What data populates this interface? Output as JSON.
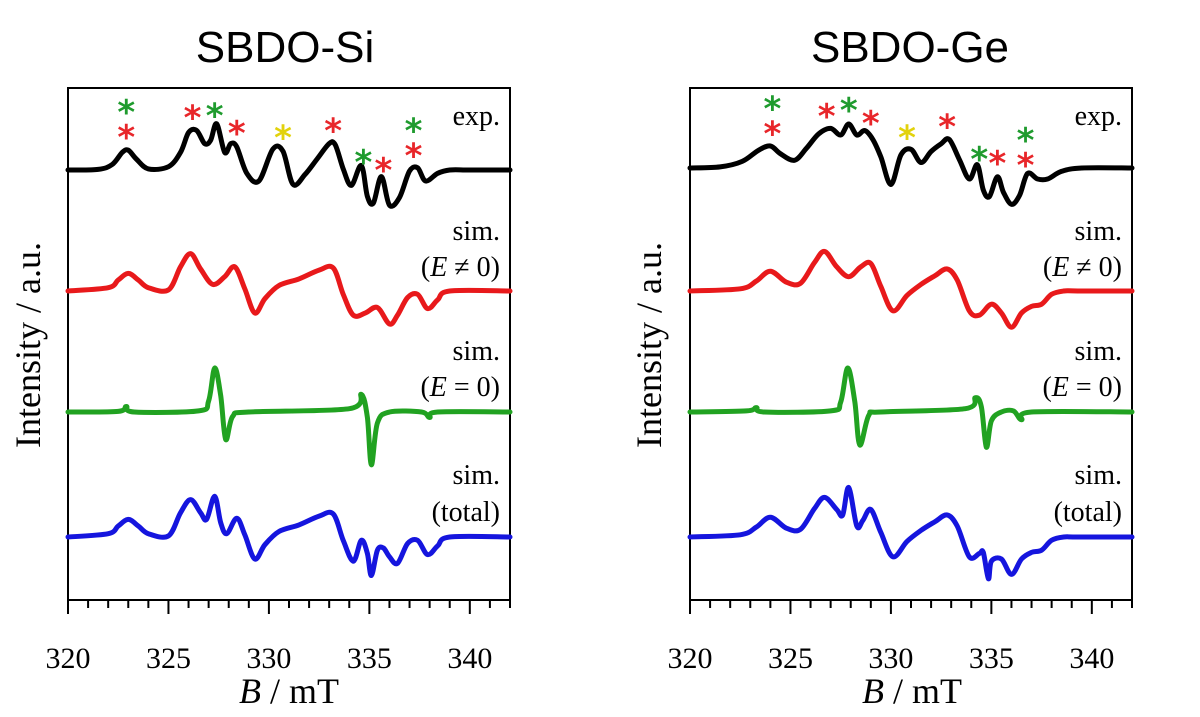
{
  "colors": {
    "black": "#000000",
    "red": "#e8191b",
    "green": "#21a221",
    "blue": "#1515de",
    "yellow": "#ddd012",
    "star_red": "#e8262a",
    "star_green": "#1f9b2e",
    "star_yellow": "#e2d20c"
  },
  "chart_data": [
    {
      "type": "line",
      "title": "SBDO-Si",
      "xlabel_italic": "B",
      "xlabel_rest": " / mT",
      "ylabel": "Intensity / a.u.",
      "xlim": [
        320,
        342
      ],
      "xticks": [
        320,
        325,
        330,
        335,
        340
      ],
      "xtick_labels": [
        "320",
        "325",
        "330",
        "335",
        "340"
      ],
      "y_axis_ticks": false,
      "trace_labels": {
        "exp": "exp.",
        "sim": "sim.",
        "e_ne0": "(E ≠ 0)",
        "e_eq0": "(E = 0)",
        "total": "(total)"
      },
      "series": [
        {
          "name": "exp.",
          "color": "black",
          "x": [
            320,
            321.5,
            322.2,
            322.7,
            323.0,
            323.4,
            324.0,
            325.0,
            325.6,
            326.0,
            326.4,
            326.8,
            327.1,
            327.4,
            327.8,
            328.1,
            328.4,
            328.9,
            329.5,
            330.2,
            330.7,
            331.2,
            331.8,
            332.4,
            333.0,
            333.3,
            333.7,
            334.1,
            334.6,
            334.9,
            335.2,
            335.6,
            336.0,
            336.5,
            337.0,
            337.4,
            337.8,
            338.4,
            339.0,
            340.0,
            342.0
          ],
          "y": [
            0,
            0.05,
            0.5,
            1.6,
            1.8,
            1.0,
            0.1,
            0.3,
            1.6,
            3.4,
            3.6,
            2.4,
            2.7,
            4.2,
            1.6,
            2.4,
            2.1,
            -0.3,
            -1.0,
            1.9,
            1.7,
            -1.3,
            -0.4,
            1.0,
            2.4,
            2.3,
            0.1,
            -1.4,
            0.4,
            -2.4,
            -3.0,
            -0.6,
            -3.2,
            -2.5,
            -0.1,
            0.2,
            -1.0,
            -0.3,
            0,
            0,
            0
          ]
        },
        {
          "name": "sim. (E ≠ 0)",
          "color": "red",
          "x": [
            320,
            322.0,
            322.5,
            323.0,
            323.5,
            324.0,
            325.0,
            325.6,
            326.1,
            326.6,
            327.2,
            327.8,
            328.3,
            328.8,
            329.3,
            329.8,
            330.5,
            331.5,
            332.5,
            333.2,
            333.7,
            334.2,
            334.8,
            335.4,
            336.0,
            336.4,
            336.9,
            337.4,
            337.9,
            338.4,
            339.0,
            342.0
          ],
          "y": [
            0,
            0.3,
            1.0,
            1.6,
            1.0,
            0.3,
            0.1,
            2.2,
            3.4,
            2.0,
            0.6,
            1.3,
            2.2,
            0.2,
            -2.0,
            -0.7,
            0.5,
            1.1,
            1.9,
            2.1,
            -0.3,
            -2.2,
            -2.0,
            -1.5,
            -3.0,
            -2.2,
            -0.6,
            -0.3,
            -1.6,
            -0.8,
            0,
            0
          ]
        },
        {
          "name": "sim. (E = 0)",
          "color": "green",
          "x": [
            320,
            322.5,
            322.9,
            323.3,
            326.5,
            327.0,
            327.3,
            327.6,
            327.85,
            328.2,
            329.0,
            334.0,
            334.6,
            334.9,
            335.1,
            335.4,
            336.0,
            337.6,
            338.0,
            338.4,
            342.0
          ],
          "y": [
            0,
            0.05,
            0.5,
            0,
            0.1,
            1.0,
            4.0,
            1.5,
            -2.5,
            -0.4,
            0,
            0.3,
            1.6,
            -0.5,
            -4.8,
            -1.0,
            0,
            0,
            -0.5,
            0,
            0
          ]
        },
        {
          "name": "sim. (total)",
          "color": "blue",
          "x": [
            320,
            322.0,
            322.5,
            323.0,
            323.5,
            324.0,
            325.0,
            325.6,
            326.1,
            326.6,
            326.9,
            327.3,
            327.6,
            327.9,
            328.4,
            328.8,
            329.3,
            329.8,
            330.5,
            331.5,
            332.5,
            333.2,
            333.7,
            334.2,
            334.6,
            334.9,
            335.1,
            335.4,
            335.7,
            336.0,
            336.4,
            336.9,
            337.4,
            337.9,
            338.4,
            339.0,
            342.0
          ],
          "y": [
            0,
            0.3,
            1.0,
            1.6,
            1.0,
            0.3,
            0.1,
            2.2,
            3.4,
            2.2,
            1.6,
            3.7,
            1.3,
            0.3,
            1.7,
            0.2,
            -2.0,
            -0.7,
            0.5,
            1.1,
            1.9,
            2.1,
            -0.3,
            -2.2,
            -0.3,
            -1.5,
            -3.5,
            -1.2,
            -1.0,
            -1.8,
            -2.4,
            -0.6,
            -0.3,
            -1.6,
            -0.8,
            0,
            0
          ]
        }
      ],
      "stars": [
        {
          "x": 322.9,
          "trace": "exp.",
          "colors": [
            "star_green",
            "star_red"
          ]
        },
        {
          "x": 326.2,
          "trace": "exp.",
          "colors": [
            "star_red"
          ]
        },
        {
          "x": 327.3,
          "trace": "exp.",
          "colors": [
            "star_green"
          ]
        },
        {
          "x": 328.4,
          "trace": "exp.",
          "colors": [
            "star_red"
          ]
        },
        {
          "x": 330.7,
          "trace": "exp.",
          "colors": [
            "star_yellow"
          ]
        },
        {
          "x": 333.2,
          "trace": "exp.",
          "colors": [
            "star_red"
          ]
        },
        {
          "x": 334.7,
          "trace": "exp.",
          "colors": [
            "star_green"
          ]
        },
        {
          "x": 335.7,
          "trace": "exp.",
          "colors": [
            "star_red"
          ]
        },
        {
          "x": 337.2,
          "trace": "exp.",
          "colors": [
            "star_green",
            "star_red"
          ]
        }
      ]
    },
    {
      "type": "line",
      "title": "SBDO-Ge",
      "xlabel_italic": "B",
      "xlabel_rest": " / mT",
      "ylabel": "Intensity / a.u.",
      "xlim": [
        320,
        342
      ],
      "xticks": [
        320,
        325,
        330,
        335,
        340
      ],
      "xtick_labels": [
        "320",
        "325",
        "330",
        "335",
        "340"
      ],
      "y_axis_ticks": false,
      "trace_labels": {
        "exp": "exp.",
        "sim": "sim.",
        "e_ne0": "(E ≠ 0)",
        "e_eq0": "(E = 0)",
        "total": "(total)"
      },
      "series": [
        {
          "name": "exp.",
          "color": "black",
          "x": [
            320,
            321.5,
            322.6,
            323.4,
            324.0,
            324.5,
            325.2,
            325.8,
            326.4,
            327.0,
            327.5,
            327.9,
            328.3,
            328.7,
            329.1,
            329.5,
            330.0,
            330.5,
            331.0,
            331.5,
            332.0,
            332.5,
            332.9,
            333.4,
            333.9,
            334.3,
            334.6,
            334.9,
            335.3,
            335.6,
            336.0,
            336.4,
            336.8,
            337.3,
            337.8,
            338.5,
            339.5,
            342.0
          ],
          "y": [
            0,
            0.1,
            0.6,
            1.6,
            2.0,
            1.3,
            0.7,
            1.8,
            3.1,
            3.6,
            3.0,
            4.0,
            3.0,
            3.4,
            2.6,
            1.0,
            -1.5,
            1.2,
            1.7,
            0.5,
            1.5,
            2.2,
            2.6,
            0.8,
            -1.0,
            0.3,
            -2.0,
            -2.6,
            -0.8,
            -2.2,
            -3.3,
            -2.5,
            -0.5,
            -1.0,
            -1.0,
            -0.3,
            0,
            0
          ]
        },
        {
          "name": "sim. (E ≠ 0)",
          "color": "red",
          "x": [
            320,
            322.5,
            323.3,
            324.0,
            324.8,
            325.5,
            326.2,
            326.7,
            327.3,
            327.9,
            328.5,
            329.0,
            329.5,
            330.1,
            330.8,
            331.5,
            332.2,
            332.8,
            333.3,
            333.9,
            334.4,
            335.0,
            335.5,
            336.0,
            336.5,
            337.0,
            337.5,
            338.0,
            338.6,
            339.3,
            342.0
          ],
          "y": [
            0,
            0.2,
            0.9,
            1.8,
            0.8,
            0.7,
            2.6,
            3.6,
            2.2,
            1.3,
            2.2,
            2.5,
            0.4,
            -1.8,
            -0.4,
            0.6,
            1.4,
            2.0,
            1.0,
            -1.8,
            -2.2,
            -1.2,
            -2.0,
            -3.3,
            -2.0,
            -1.4,
            -1.2,
            -0.3,
            0,
            0,
            0
          ]
        },
        {
          "name": "sim. (E = 0)",
          "color": "green",
          "x": [
            320,
            322.8,
            323.3,
            323.7,
            327.0,
            327.5,
            327.85,
            328.2,
            328.45,
            328.9,
            329.5,
            333.7,
            334.2,
            334.5,
            334.75,
            335.0,
            335.5,
            336.1,
            336.5,
            337.0,
            342.0
          ],
          "y": [
            0,
            0.1,
            0.4,
            0,
            0.1,
            0.9,
            4.0,
            1.0,
            -3.0,
            -0.3,
            0,
            0.3,
            1.3,
            0.5,
            -3.2,
            -0.8,
            0,
            0.1,
            -0.7,
            0,
            0
          ]
        },
        {
          "name": "sim. (total)",
          "color": "blue",
          "x": [
            320,
            322.5,
            323.3,
            324.0,
            324.8,
            325.5,
            326.2,
            326.7,
            327.3,
            327.6,
            327.9,
            328.3,
            328.6,
            329.0,
            329.5,
            330.1,
            330.8,
            331.5,
            332.2,
            332.8,
            333.3,
            333.9,
            334.4,
            334.6,
            334.85,
            335.0,
            335.5,
            336.0,
            336.5,
            337.0,
            337.5,
            338.0,
            338.6,
            339.3,
            342.0
          ],
          "y": [
            0,
            0.2,
            0.9,
            1.8,
            0.8,
            0.7,
            2.6,
            3.6,
            2.5,
            2.0,
            4.5,
            1.0,
            1.5,
            2.5,
            0.4,
            -1.8,
            -0.4,
            0.6,
            1.4,
            2.0,
            1.0,
            -1.8,
            -1.5,
            -1.4,
            -3.8,
            -2.2,
            -2.0,
            -3.4,
            -2.0,
            -1.4,
            -1.2,
            -0.3,
            0,
            0,
            0
          ]
        }
      ],
      "stars": [
        {
          "x": 324.1,
          "trace": "exp.",
          "colors": [
            "star_green",
            "star_red"
          ]
        },
        {
          "x": 326.8,
          "trace": "exp.",
          "colors": [
            "star_red"
          ]
        },
        {
          "x": 327.9,
          "trace": "exp.",
          "colors": [
            "star_green"
          ]
        },
        {
          "x": 329.0,
          "trace": "exp.",
          "colors": [
            "star_red"
          ]
        },
        {
          "x": 330.8,
          "trace": "exp.",
          "colors": [
            "star_yellow"
          ]
        },
        {
          "x": 332.8,
          "trace": "exp.",
          "colors": [
            "star_red"
          ]
        },
        {
          "x": 334.4,
          "trace": "exp.",
          "colors": [
            "star_green"
          ]
        },
        {
          "x": 335.3,
          "trace": "exp.",
          "colors": [
            "star_red"
          ]
        },
        {
          "x": 336.7,
          "trace": "exp.",
          "colors": [
            "star_green",
            "star_red"
          ]
        }
      ]
    }
  ]
}
